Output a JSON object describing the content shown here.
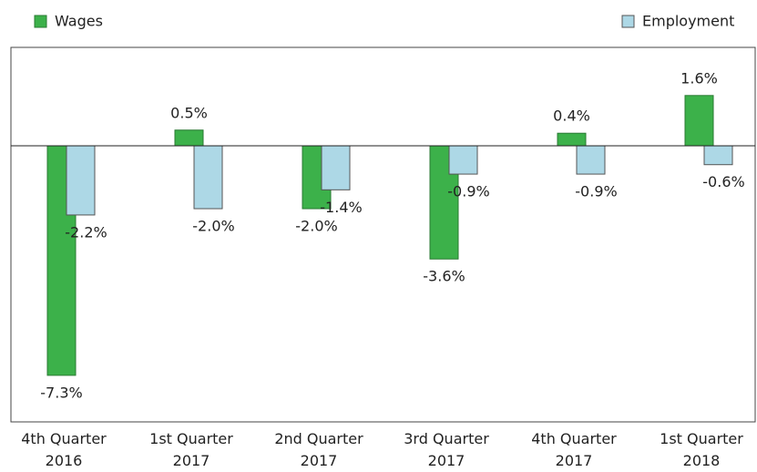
{
  "chart_data": {
    "type": "bar",
    "categories": [
      "4th Quarter\n2016",
      "1st Quarter\n2017",
      "2nd Quarter\n2017",
      "3rd Quarter\n2017",
      "4th Quarter\n2017",
      "1st Quarter\n2018"
    ],
    "series": [
      {
        "name": "Wages",
        "color": "#3cb14a",
        "values": [
          -7.3,
          0.5,
          -2.0,
          -3.6,
          0.4,
          1.6
        ],
        "value_labels": [
          "-7.3%",
          "0.5%",
          "-2.0%",
          "-3.6%",
          "0.4%",
          "1.6%"
        ]
      },
      {
        "name": "Employment",
        "color": "#add8e6",
        "values": [
          -2.2,
          -2.0,
          -1.4,
          -0.9,
          -0.9,
          -0.6
        ],
        "value_labels": [
          "-2.2%",
          "-2.0%",
          "-1.4%",
          "-0.9%",
          "-0.9%",
          "-0.6%"
        ]
      }
    ],
    "ylim": [
      -8.78,
      3.13
    ],
    "legend": "top"
  }
}
